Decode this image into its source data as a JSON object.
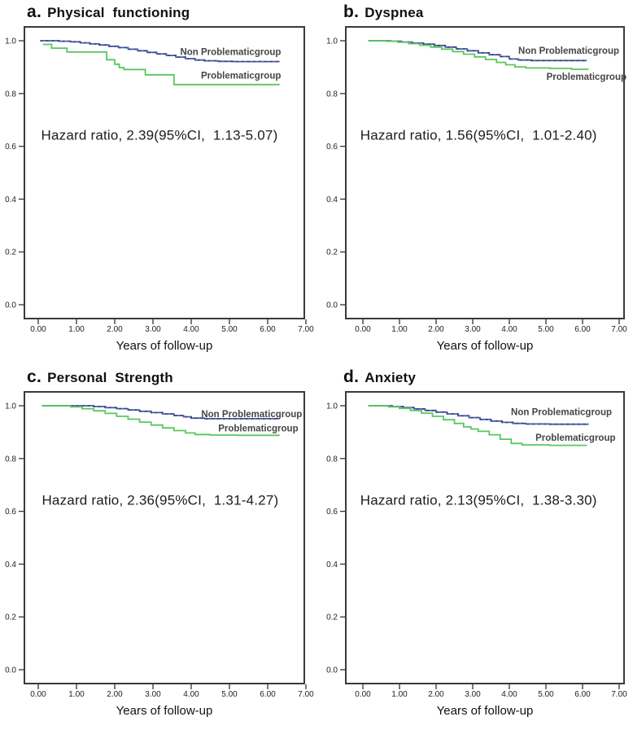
{
  "figure_title": "Kaplan-Meier survival curves by symptom group",
  "chart_data": [
    {
      "id": "a",
      "type": "line",
      "subtype": "kaplan-meier-step",
      "title_prefix": "a.",
      "title": "Physical  functioning",
      "annotation": "Hazard ratio, 2.39(95%CI,  1.13-5.07)",
      "annotation_pos": [
        3.17,
        0.64
      ],
      "xlabel": "Years of follow-up",
      "x_ticks": [
        "0.00",
        "1.00",
        "2.00",
        "3.00",
        "4.00",
        "5.00",
        "6.00",
        "7.00"
      ],
      "y_ticks": [
        "0.0",
        "0.2",
        "0.4",
        "0.6",
        "0.8",
        "1.0"
      ],
      "xlim": [
        -0.35,
        7.15
      ],
      "ylim": [
        -0.05,
        1.05
      ],
      "grid": false,
      "legend": "inline-labels",
      "series": [
        {
          "name": "Non Problematicgroup",
          "color": "#4a5da3",
          "overlay_color": "#2a3a80",
          "label_end": [
            6.35,
            0.957
          ],
          "points": [
            [
              0.05,
              1.0
            ],
            [
              0.55,
              0.998
            ],
            [
              0.85,
              0.996
            ],
            [
              1.1,
              0.992
            ],
            [
              1.35,
              0.988
            ],
            [
              1.6,
              0.984
            ],
            [
              1.85,
              0.979
            ],
            [
              2.1,
              0.974
            ],
            [
              2.35,
              0.968
            ],
            [
              2.6,
              0.962
            ],
            [
              2.85,
              0.956
            ],
            [
              3.1,
              0.95
            ],
            [
              3.35,
              0.944
            ],
            [
              3.6,
              0.938
            ],
            [
              3.85,
              0.932
            ],
            [
              4.1,
              0.927
            ],
            [
              4.35,
              0.924
            ],
            [
              4.7,
              0.922
            ],
            [
              5.1,
              0.921
            ],
            [
              6.3,
              0.92
            ]
          ]
        },
        {
          "name": "Problematicgroup",
          "color": "#58c75e",
          "label_end": [
            6.35,
            0.868
          ],
          "points": [
            [
              0.12,
              0.986
            ],
            [
              0.35,
              0.972
            ],
            [
              0.75,
              0.957
            ],
            [
              1.79,
              0.928
            ],
            [
              2.0,
              0.911
            ],
            [
              2.12,
              0.898
            ],
            [
              2.24,
              0.891
            ],
            [
              2.8,
              0.871
            ],
            [
              3.55,
              0.834
            ],
            [
              6.3,
              0.833
            ]
          ]
        }
      ]
    },
    {
      "id": "b",
      "type": "line",
      "subtype": "kaplan-meier-step",
      "title_prefix": "b.",
      "title": "Dyspnea",
      "annotation": "Hazard ratio, 1.56(95%CI,  1.01-2.40)",
      "annotation_pos": [
        3.16,
        0.64
      ],
      "xlabel": "Years of follow-up",
      "x_ticks": [
        "0.00",
        "1.00",
        "2.00",
        "3.00",
        "4.00",
        "5.00",
        "6.00",
        "7.00"
      ],
      "y_ticks": [
        "0.0",
        "0.2",
        "0.4",
        "0.6",
        "0.8",
        "1.0"
      ],
      "xlim": [
        -0.35,
        7.15
      ],
      "ylim": [
        -0.05,
        1.05
      ],
      "grid": false,
      "legend": "inline-labels",
      "series": [
        {
          "name": "Non Problematicgroup",
          "color": "#4a5da3",
          "overlay_color": "#2a3a80",
          "label_end": [
            7.0,
            0.962
          ],
          "points": [
            [
              0.15,
              1.0
            ],
            [
              0.75,
              0.998
            ],
            [
              1.05,
              0.995
            ],
            [
              1.35,
              0.991
            ],
            [
              1.65,
              0.987
            ],
            [
              1.95,
              0.982
            ],
            [
              2.25,
              0.976
            ],
            [
              2.55,
              0.969
            ],
            [
              2.85,
              0.962
            ],
            [
              3.15,
              0.954
            ],
            [
              3.45,
              0.947
            ],
            [
              3.75,
              0.94
            ],
            [
              4.0,
              0.931
            ],
            [
              4.25,
              0.927
            ],
            [
              4.6,
              0.925
            ],
            [
              6.1,
              0.924
            ]
          ]
        },
        {
          "name": "Problematicgroup",
          "color": "#58c75e",
          "label_end": [
            7.2,
            0.862
          ],
          "points": [
            [
              0.15,
              1.0
            ],
            [
              0.65,
              0.998
            ],
            [
              0.95,
              0.994
            ],
            [
              1.25,
              0.989
            ],
            [
              1.55,
              0.983
            ],
            [
              1.85,
              0.976
            ],
            [
              2.15,
              0.968
            ],
            [
              2.45,
              0.959
            ],
            [
              2.75,
              0.949
            ],
            [
              3.05,
              0.939
            ],
            [
              3.35,
              0.929
            ],
            [
              3.65,
              0.918
            ],
            [
              3.9,
              0.909
            ],
            [
              4.15,
              0.901
            ],
            [
              4.45,
              0.897
            ],
            [
              5.1,
              0.895
            ],
            [
              5.7,
              0.892
            ],
            [
              6.15,
              0.89
            ]
          ]
        }
      ]
    },
    {
      "id": "c",
      "type": "line",
      "subtype": "kaplan-meier-step",
      "title_prefix": "c.",
      "title": "Personal  Strength",
      "annotation": "Hazard ratio, 2.36(95%CI,  1.31-4.27)",
      "annotation_pos": [
        3.19,
        0.64
      ],
      "xlabel": "Years of follow-up",
      "x_ticks": [
        "0.00",
        "1.00",
        "2.00",
        "3.00",
        "4.00",
        "5.00",
        "6.00",
        "7.00"
      ],
      "y_ticks": [
        "0.0",
        "0.2",
        "0.4",
        "0.6",
        "0.8",
        "1.0"
      ],
      "xlim": [
        -0.35,
        7.15
      ],
      "ylim": [
        -0.05,
        1.05
      ],
      "grid": false,
      "legend": "inline-labels",
      "series": [
        {
          "name": "Non Problematicgroup",
          "color": "#4a5da3",
          "overlay_color": "#2a3a80",
          "label_end": [
            6.9,
            0.967
          ],
          "points": [
            [
              0.1,
              1.0
            ],
            [
              1.45,
              0.997
            ],
            [
              1.75,
              0.993
            ],
            [
              2.05,
              0.989
            ],
            [
              2.35,
              0.984
            ],
            [
              2.65,
              0.979
            ],
            [
              2.95,
              0.974
            ],
            [
              3.25,
              0.969
            ],
            [
              3.55,
              0.963
            ],
            [
              3.8,
              0.958
            ],
            [
              4.0,
              0.953
            ],
            [
              4.35,
              0.951
            ],
            [
              6.3,
              0.95
            ]
          ]
        },
        {
          "name": "Problematicgroup",
          "color": "#58c75e",
          "label_end": [
            6.8,
            0.913
          ],
          "points": [
            [
              0.1,
              1.0
            ],
            [
              0.85,
              0.996
            ],
            [
              1.15,
              0.989
            ],
            [
              1.45,
              0.981
            ],
            [
              1.75,
              0.971
            ],
            [
              2.05,
              0.96
            ],
            [
              2.35,
              0.949
            ],
            [
              2.65,
              0.938
            ],
            [
              2.95,
              0.927
            ],
            [
              3.25,
              0.916
            ],
            [
              3.55,
              0.906
            ],
            [
              3.85,
              0.897
            ],
            [
              4.1,
              0.891
            ],
            [
              4.5,
              0.889
            ],
            [
              5.2,
              0.888
            ],
            [
              6.3,
              0.887
            ]
          ]
        }
      ]
    },
    {
      "id": "d",
      "type": "line",
      "subtype": "kaplan-meier-step",
      "title_prefix": "d.",
      "title": "Anxiety",
      "annotation": "Hazard ratio, 2.13(95%CI,  1.38-3.30)",
      "annotation_pos": [
        3.16,
        0.64
      ],
      "xlabel": "Years of follow-up",
      "x_ticks": [
        "0.00",
        "1.00",
        "2.00",
        "3.00",
        "4.00",
        "5.00",
        "6.00",
        "7.00"
      ],
      "y_ticks": [
        "0.0",
        "0.2",
        "0.4",
        "0.6",
        "0.8",
        "1.0"
      ],
      "xlim": [
        -0.35,
        7.15
      ],
      "ylim": [
        -0.05,
        1.05
      ],
      "grid": false,
      "legend": "inline-labels",
      "series": [
        {
          "name": "Non Problematicgroup",
          "color": "#4a5da3",
          "overlay_color": "#2a3a80",
          "label_end": [
            6.8,
            0.975
          ],
          "points": [
            [
              0.15,
              1.0
            ],
            [
              0.8,
              0.997
            ],
            [
              1.1,
              0.993
            ],
            [
              1.4,
              0.988
            ],
            [
              1.7,
              0.982
            ],
            [
              2.0,
              0.976
            ],
            [
              2.3,
              0.969
            ],
            [
              2.6,
              0.962
            ],
            [
              2.9,
              0.955
            ],
            [
              3.2,
              0.948
            ],
            [
              3.5,
              0.942
            ],
            [
              3.8,
              0.937
            ],
            [
              4.1,
              0.933
            ],
            [
              4.45,
              0.931
            ],
            [
              5.1,
              0.93
            ],
            [
              6.15,
              0.928
            ]
          ]
        },
        {
          "name": "Problematicgroup",
          "color": "#58c75e",
          "label_end": [
            6.9,
            0.878
          ],
          "points": [
            [
              0.15,
              1.0
            ],
            [
              0.7,
              0.996
            ],
            [
              1.0,
              0.99
            ],
            [
              1.3,
              0.982
            ],
            [
              1.6,
              0.972
            ],
            [
              1.9,
              0.96
            ],
            [
              2.2,
              0.947
            ],
            [
              2.5,
              0.933
            ],
            [
              2.75,
              0.92
            ],
            [
              2.95,
              0.912
            ],
            [
              3.15,
              0.903
            ],
            [
              3.45,
              0.89
            ],
            [
              3.75,
              0.873
            ],
            [
              4.05,
              0.857
            ],
            [
              4.35,
              0.852
            ],
            [
              5.1,
              0.85
            ],
            [
              6.1,
              0.848
            ]
          ]
        }
      ]
    }
  ]
}
